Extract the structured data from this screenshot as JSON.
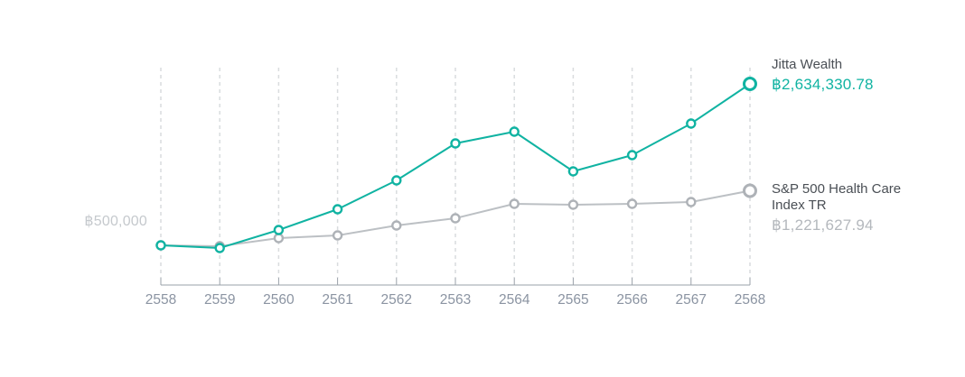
{
  "chart_data": {
    "type": "line",
    "categories": [
      "2558",
      "2559",
      "2560",
      "2561",
      "2562",
      "2563",
      "2564",
      "2565",
      "2566",
      "2567",
      "2568"
    ],
    "series": [
      {
        "name": "Jitta Wealth",
        "color": "#10b3a2",
        "end_value_label": "฿2,634,330.78",
        "values": [
          500000,
          464000,
          702700,
          977000,
          1358500,
          1847400,
          2002400,
          1477700,
          1692400,
          2109700,
          2634330.78
        ]
      },
      {
        "name": "S&P 500 Health Care Index TR",
        "color": "#bcc0c4",
        "marker_color": "#aeb2b7",
        "end_value_label": "฿1,221,627.94",
        "values": [
          500000,
          488000,
          595400,
          631200,
          762300,
          857700,
          1048500,
          1036600,
          1048500,
          1072300,
          1221627.94
        ]
      }
    ],
    "baseline_label": "฿500,000",
    "currency_symbol": "฿",
    "title": "",
    "xlabel": "",
    "ylabel": "",
    "ylim": [
      400000,
      2750000
    ],
    "grid": "vertical-dashed",
    "legend_position": "right-end-of-line"
  },
  "colors": {
    "background": "#ffffff",
    "grid_line": "#d9dcde",
    "axis_line": "#9aa1a9",
    "tick_label": "#8b94a2",
    "legend_name_text": "#4a4f55",
    "jitta_accent": "#10b3a2",
    "sp_value_text": "#b4b8bd",
    "baseline_text": "#c5c9cd",
    "marker_fill": "#ffffff"
  }
}
